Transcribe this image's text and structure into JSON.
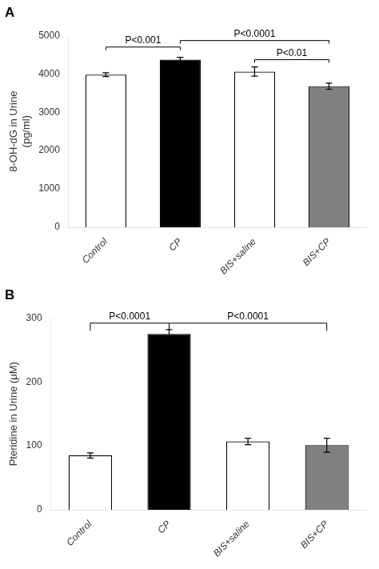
{
  "chart_data": [
    {
      "type": "bar",
      "title": "A",
      "categories": [
        "Control",
        "CP",
        "BIS+saline",
        "BIS+CP"
      ],
      "values": [
        3980,
        4370,
        4060,
        3680
      ],
      "errors": [
        50,
        60,
        120,
        80
      ],
      "colors": [
        "#ffffff",
        "#000000",
        "#ffffff",
        "#808080"
      ],
      "ylabel": "8-OH-dG in Urine\n(pg/ml)",
      "ylim": [
        0,
        5000
      ],
      "yticks": [
        0,
        1000,
        2000,
        3000,
        4000,
        5000
      ],
      "grid": false,
      "annotations": [
        {
          "x1": "Control",
          "x2": "CP",
          "y": 4700,
          "drop": 80,
          "text": "P<0.001"
        },
        {
          "x1": "CP",
          "x2": "BIS+CP",
          "y": 4870,
          "drop": 80,
          "text": "P<0.0001"
        },
        {
          "x1": "BIS+saline",
          "x2": "BIS+CP",
          "y": 4370,
          "drop": 80,
          "text": "P<0.01"
        }
      ]
    },
    {
      "type": "bar",
      "title": "B",
      "categories": [
        "Control",
        "CP",
        "BIS+saline",
        "BIS+CP"
      ],
      "values": [
        85,
        275,
        107,
        101
      ],
      "errors": [
        4,
        7,
        5,
        11
      ],
      "colors": [
        "#ffffff",
        "#000000",
        "#ffffff",
        "#808080"
      ],
      "ylabel": "Pteridine in Urine (μM)",
      "ylim": [
        0,
        300
      ],
      "yticks": [
        0,
        100,
        200,
        300
      ],
      "grid": false,
      "annotations": [
        {
          "x1": "Control",
          "x2": "CP",
          "y": 292,
          "drop": 12,
          "text": "P<0.0001"
        },
        {
          "x1": "CP",
          "x2": "BIS+CP",
          "y": 292,
          "drop": 12,
          "text": "P<0.0001"
        }
      ]
    }
  ]
}
